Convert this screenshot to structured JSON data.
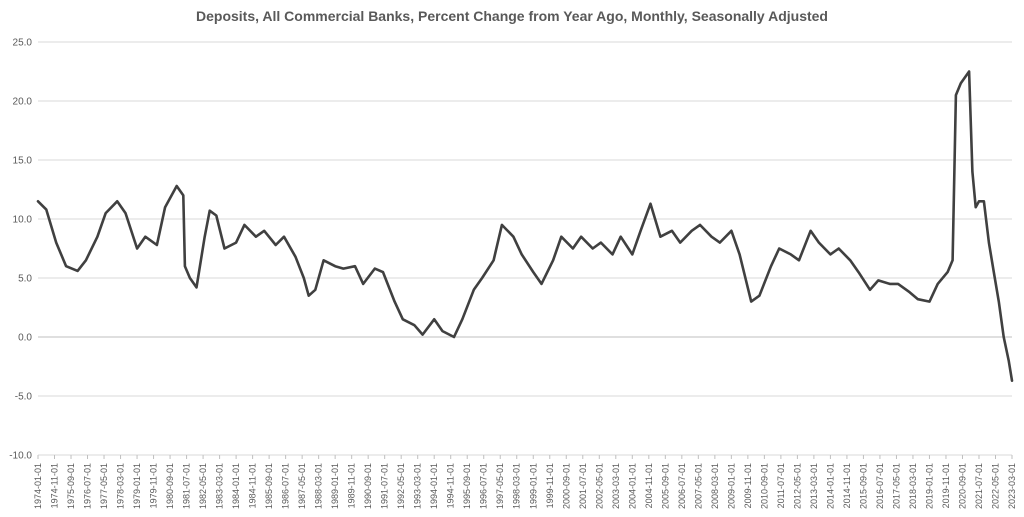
{
  "chart_data": {
    "type": "line",
    "title": "Deposits, All Commercial Banks, Percent Change from Year Ago, Monthly, Seasonally Adjusted",
    "xlabel": "",
    "ylabel": "",
    "ylim": [
      -10,
      25
    ],
    "yticks": [
      "25.0",
      "20.0",
      "15.0",
      "10.0",
      "5.0",
      "0.0",
      "-5.0",
      "-10.0"
    ],
    "xlim": [
      "1974-01-01",
      "2023-03-01"
    ],
    "grid": true,
    "legend": "none",
    "line_color": "#404040",
    "xtick_labels": [
      "1974-01-01",
      "1974-11-01",
      "1975-09-01",
      "1976-07-01",
      "1977-05-01",
      "1978-03-01",
      "1979-01-01",
      "1979-11-01",
      "1980-09-01",
      "1981-07-01",
      "1982-05-01",
      "1983-03-01",
      "1984-01-01",
      "1984-11-01",
      "1985-09-01",
      "1986-07-01",
      "1987-05-01",
      "1988-03-01",
      "1989-01-01",
      "1989-11-01",
      "1990-09-01",
      "1991-07-01",
      "1992-05-01",
      "1993-03-01",
      "1994-01-01",
      "1994-11-01",
      "1995-09-01",
      "1996-07-01",
      "1997-05-01",
      "1998-03-01",
      "1999-01-01",
      "1999-11-01",
      "2000-09-01",
      "2001-07-01",
      "2002-05-01",
      "2003-03-01",
      "2004-01-01",
      "2004-11-01",
      "2005-09-01",
      "2006-07-01",
      "2007-05-01",
      "2008-03-01",
      "2009-01-01",
      "2009-11-01",
      "2010-09-01",
      "2011-07-01",
      "2012-05-01",
      "2013-03-01",
      "2014-01-01",
      "2014-11-01",
      "2015-09-01",
      "2016-07-01",
      "2017-05-01",
      "2018-03-01",
      "2019-01-01",
      "2019-11-01",
      "2020-09-01",
      "2021-07-01",
      "2022-05-01",
      "2023-03-01"
    ],
    "series": [
      {
        "x": [
          "1974-01",
          "1974-06",
          "1974-12",
          "1975-06",
          "1976-01",
          "1976-06",
          "1977-01",
          "1977-06",
          "1978-01",
          "1978-06",
          "1979-01",
          "1979-06",
          "1980-01",
          "1980-06",
          "1981-01",
          "1981-05",
          "1981-06",
          "1981-09",
          "1982-01",
          "1982-06",
          "1982-09",
          "1983-01",
          "1983-06",
          "1984-01",
          "1984-06",
          "1985-01",
          "1985-06",
          "1986-01",
          "1986-06",
          "1987-01",
          "1987-06",
          "1987-09",
          "1988-01",
          "1988-06",
          "1989-01",
          "1989-06",
          "1990-01",
          "1990-06",
          "1991-01",
          "1991-06",
          "1992-01",
          "1992-06",
          "1993-01",
          "1993-06",
          "1994-01",
          "1994-06",
          "1995-01",
          "1995-06",
          "1996-01",
          "1996-06",
          "1997-01",
          "1997-06",
          "1998-01",
          "1998-06",
          "1999-01",
          "1999-06",
          "2000-01",
          "2000-06",
          "2001-01",
          "2001-06",
          "2002-01",
          "2002-06",
          "2003-01",
          "2003-06",
          "2004-01",
          "2004-06",
          "2004-12",
          "2005-06",
          "2006-01",
          "2006-06",
          "2007-01",
          "2007-06",
          "2008-01",
          "2008-06",
          "2009-01",
          "2009-06",
          "2010-01",
          "2010-06",
          "2011-01",
          "2011-06",
          "2012-01",
          "2012-06",
          "2013-01",
          "2013-06",
          "2014-01",
          "2014-06",
          "2015-01",
          "2015-06",
          "2016-01",
          "2016-06",
          "2017-01",
          "2017-06",
          "2018-01",
          "2018-06",
          "2019-01",
          "2019-06",
          "2019-12",
          "2020-03",
          "2020-05",
          "2020-08",
          "2021-01",
          "2021-03",
          "2021-05",
          "2021-07",
          "2021-10",
          "2022-01",
          "2022-04",
          "2022-07",
          "2022-10",
          "2023-01",
          "2023-03"
        ],
        "values": [
          11.5,
          10.8,
          8.0,
          6.0,
          5.6,
          6.5,
          8.5,
          10.5,
          11.5,
          10.5,
          7.5,
          8.5,
          7.8,
          11.0,
          12.8,
          12.0,
          6.0,
          5.0,
          4.2,
          8.5,
          10.7,
          10.3,
          7.5,
          8.0,
          9.5,
          8.5,
          9.0,
          7.8,
          8.5,
          6.8,
          5.0,
          3.5,
          4.0,
          6.5,
          6.0,
          5.8,
          6.0,
          4.5,
          5.8,
          5.5,
          3.0,
          1.5,
          1.0,
          0.2,
          1.5,
          0.5,
          0.0,
          1.5,
          4.0,
          5.0,
          6.5,
          9.5,
          8.5,
          7.0,
          5.5,
          4.5,
          6.5,
          8.5,
          7.5,
          8.5,
          7.5,
          8.0,
          7.0,
          8.5,
          7.0,
          9.0,
          11.3,
          8.5,
          9.0,
          8.0,
          9.0,
          9.5,
          8.5,
          8.0,
          9.0,
          7.0,
          3.0,
          3.5,
          6.0,
          7.5,
          7.0,
          6.5,
          9.0,
          8.0,
          7.0,
          7.5,
          6.5,
          5.5,
          4.0,
          4.8,
          4.5,
          4.5,
          3.8,
          3.2,
          3.0,
          4.5,
          5.5,
          6.5,
          20.5,
          21.5,
          22.5,
          14.0,
          11.0,
          11.5,
          11.5,
          8.0,
          5.5,
          3.0,
          0.0,
          -2.0,
          -3.7
        ]
      }
    ]
  }
}
